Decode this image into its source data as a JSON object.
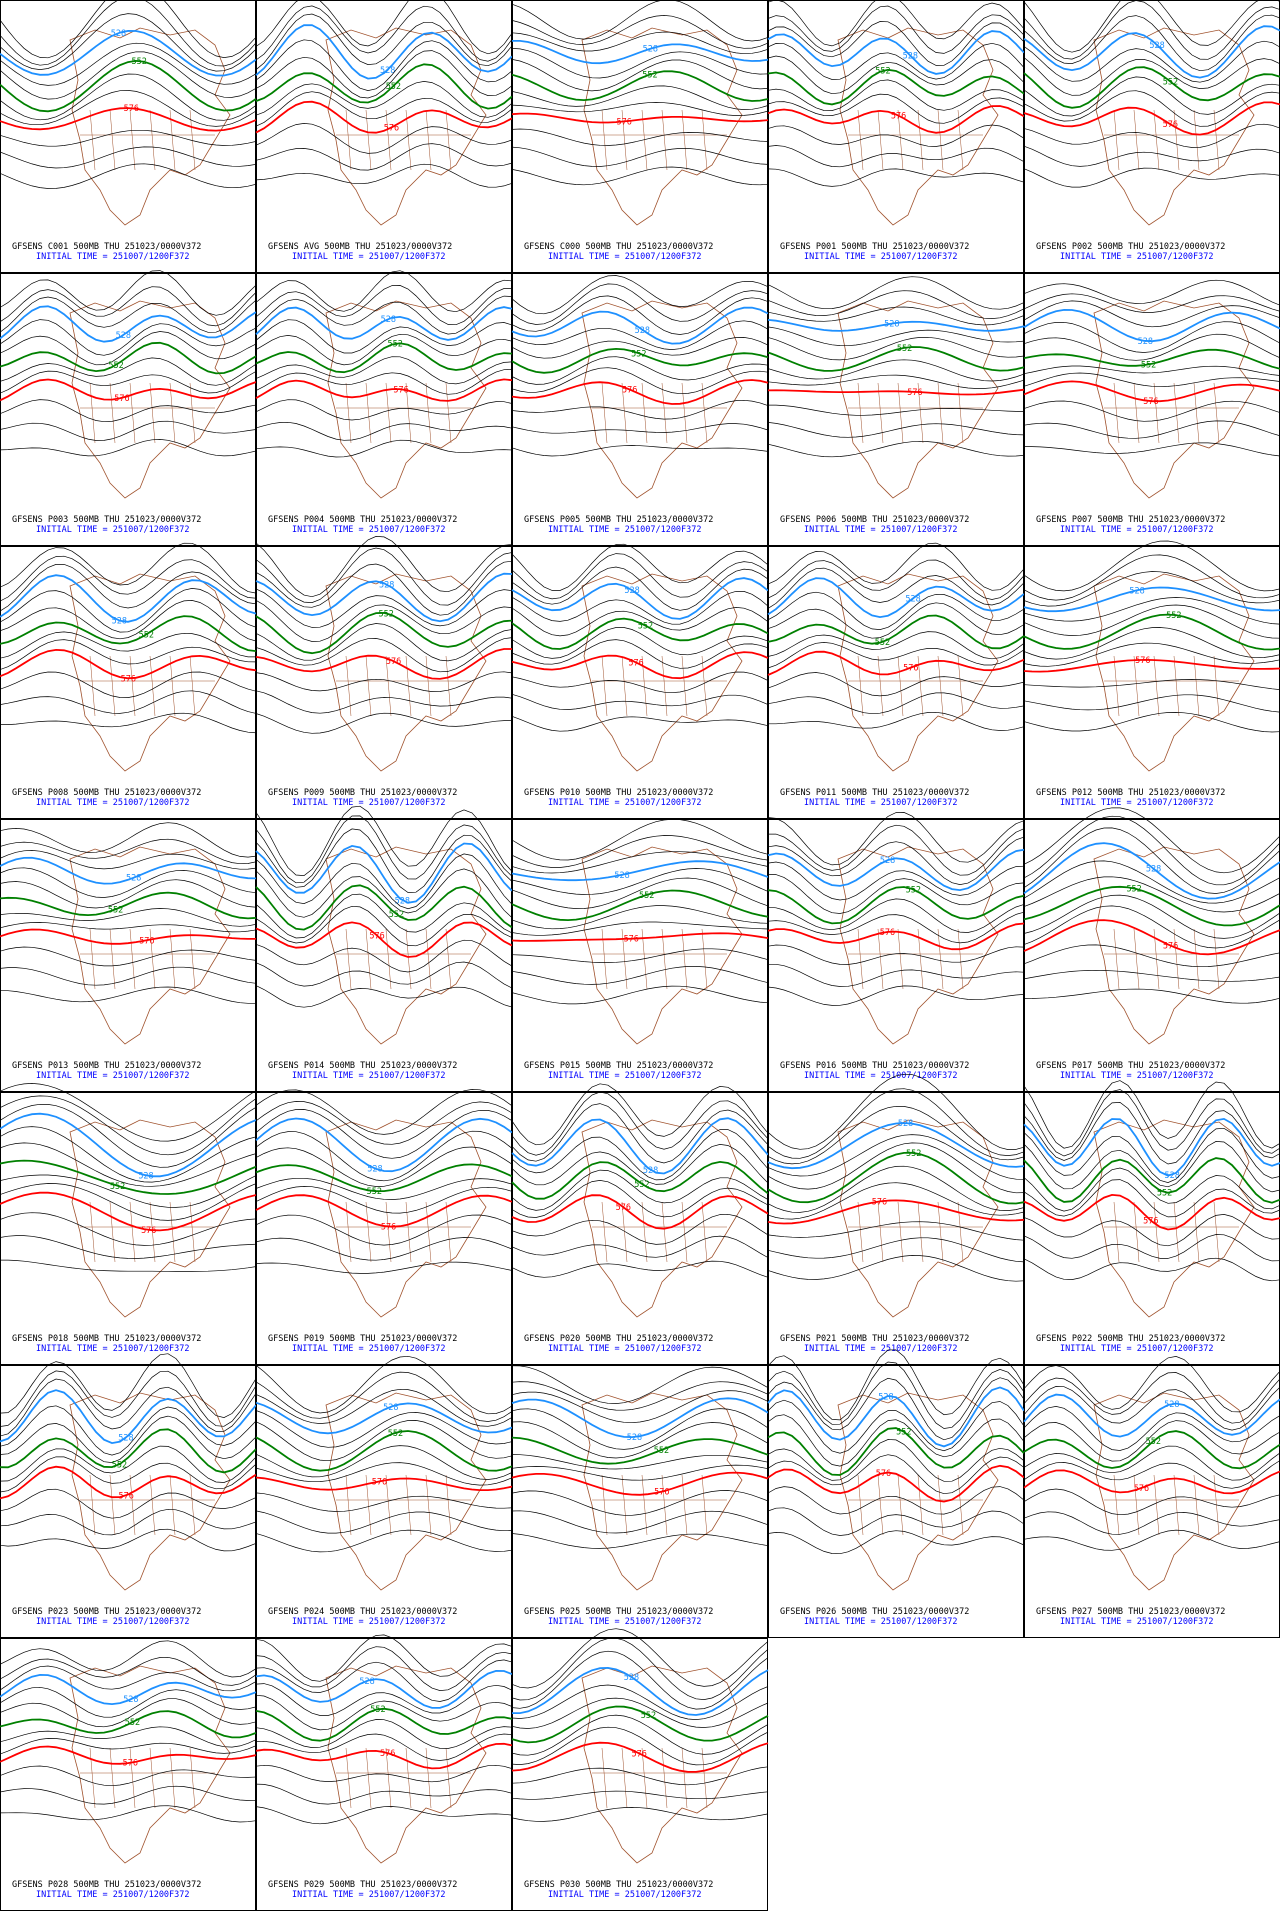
{
  "panels": [
    {
      "title": "GFSENS C001 500MB THU 251023/0000V372",
      "initial_time": "INITIAL TIME = 251007/1200F372"
    },
    {
      "title": "GFSENS AVG 500MB THU 251023/0000V372",
      "initial_time": "INITIAL TIME = 251007/1200F372"
    },
    {
      "title": "GFSENS C000 500MB THU 251023/0000V372",
      "initial_time": "INITIAL TIME = 251007/1200F372"
    },
    {
      "title": "GFSENS P001 500MB THU 251023/0000V372",
      "initial_time": "INITIAL TIME = 251007/1200F372"
    },
    {
      "title": "GFSENS P002 500MB THU 251023/0000V372",
      "initial_time": "INITIAL TIME = 251007/1200F372"
    },
    {
      "title": "GFSENS P003 500MB THU 251023/0000V372",
      "initial_time": "INITIAL TIME = 251007/1200F372"
    },
    {
      "title": "GFSENS P004 500MB THU 251023/0000V372",
      "initial_time": "INITIAL TIME = 251007/1200F372"
    },
    {
      "title": "GFSENS P005 500MB THU 251023/0000V372",
      "initial_time": "INITIAL TIME = 251007/1200F372"
    },
    {
      "title": "GFSENS P006 500MB THU 251023/0000V372",
      "initial_time": "INITIAL TIME = 251007/1200F372"
    },
    {
      "title": "GFSENS P007 500MB THU 251023/0000V372",
      "initial_time": "INITIAL TIME = 251007/1200F372"
    },
    {
      "title": "GFSENS P008 500MB THU 251023/0000V372",
      "initial_time": "INITIAL TIME = 251007/1200F372"
    },
    {
      "title": "GFSENS P009 500MB THU 251023/0000V372",
      "initial_time": "INITIAL TIME = 251007/1200F372"
    },
    {
      "title": "GFSENS P010 500MB THU 251023/0000V372",
      "initial_time": "INITIAL TIME = 251007/1200F372"
    },
    {
      "title": "GFSENS P011 500MB THU 251023/0000V372",
      "initial_time": "INITIAL TIME = 251007/1200F372"
    },
    {
      "title": "GFSENS P012 500MB THU 251023/0000V372",
      "initial_time": "INITIAL TIME = 251007/1200F372"
    },
    {
      "title": "GFSENS P013 500MB THU 251023/0000V372",
      "initial_time": "INITIAL TIME = 251007/1200F372"
    },
    {
      "title": "GFSENS P014 500MB THU 251023/0000V372",
      "initial_time": "INITIAL TIME = 251007/1200F372"
    },
    {
      "title": "GFSENS P015 500MB THU 251023/0000V372",
      "initial_time": "INITIAL TIME = 251007/1200F372"
    },
    {
      "title": "GFSENS P016 500MB THU 251023/0000V372",
      "initial_time": "INITIAL TIME = 251007/1200F372"
    },
    {
      "title": "GFSENS P017 500MB THU 251023/0000V372",
      "initial_time": "INITIAL TIME = 251007/1200F372"
    },
    {
      "title": "GFSENS P018 500MB THU 251023/0000V372",
      "initial_time": "INITIAL TIME = 251007/1200F372"
    },
    {
      "title": "GFSENS P019 500MB THU 251023/0000V372",
      "initial_time": "INITIAL TIME = 251007/1200F372"
    },
    {
      "title": "GFSENS P020 500MB THU 251023/0000V372",
      "initial_time": "INITIAL TIME = 251007/1200F372"
    },
    {
      "title": "GFSENS P021 500MB THU 251023/0000V372",
      "initial_time": "INITIAL TIME = 251007/1200F372"
    },
    {
      "title": "GFSENS P022 500MB THU 251023/0000V372",
      "initial_time": "INITIAL TIME = 251007/1200F372"
    },
    {
      "title": "GFSENS P023 500MB THU 251023/0000V372",
      "initial_time": "INITIAL TIME = 251007/1200F372"
    },
    {
      "title": "GFSENS P024 500MB THU 251023/0000V372",
      "initial_time": "INITIAL TIME = 251007/1200F372"
    },
    {
      "title": "GFSENS P025 500MB THU 251023/0000V372",
      "initial_time": "INITIAL TIME = 251007/1200F372"
    },
    {
      "title": "GFSENS P026 500MB THU 251023/0000V372",
      "initial_time": "INITIAL TIME = 251007/1200F372"
    },
    {
      "title": "GFSENS P027 500MB THU 251023/0000V372",
      "initial_time": "INITIAL TIME = 251007/1200F372"
    },
    {
      "title": "GFSENS P028 500MB THU 251023/0000V372",
      "initial_time": "INITIAL TIME = 251007/1200F372"
    },
    {
      "title": "GFSENS P029 500MB THU 251023/0000V372",
      "initial_time": "INITIAL TIME = 251007/1200F372"
    },
    {
      "title": "GFSENS P030 500MB THU 251023/0000V372",
      "initial_time": "INITIAL TIME = 251007/1200F372"
    }
  ],
  "contour_labels": [
    "528",
    "552",
    "576"
  ]
}
